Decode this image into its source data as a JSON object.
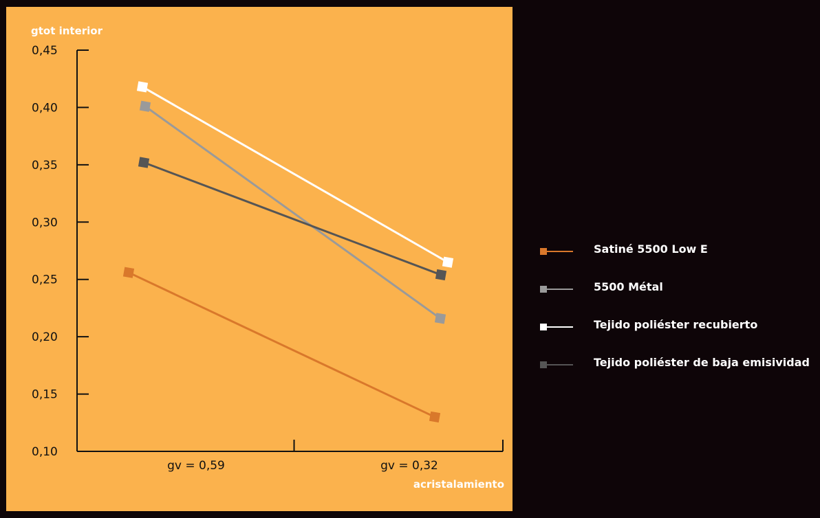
{
  "chart_data": {
    "type": "line",
    "ylabel": "gtot interior",
    "xlabel": "acristalamiento",
    "categories": [
      "gv = 0,59",
      "gv = 0,32"
    ],
    "ylim": [
      0.1,
      0.45
    ],
    "yticks": [
      "0,10",
      "0,15",
      "0,20",
      "0,25",
      "0,30",
      "0,35",
      "0,40",
      "0,45"
    ],
    "yticks_values": [
      0.1,
      0.15,
      0.2,
      0.25,
      0.3,
      0.35,
      0.4,
      0.45
    ],
    "grid": false,
    "legend_position": "right",
    "series": [
      {
        "name": "Satiné 5500 Low E",
        "color": "#d9782b",
        "x": [
          0.59,
          0.32
        ],
        "values": [
          0.256,
          0.13
        ]
      },
      {
        "name": "5500 Métal",
        "color": "#9a9a9a",
        "x": [
          0.59,
          0.32
        ],
        "values": [
          0.401,
          0.216
        ]
      },
      {
        "name": "Tejido poliéster recubierto",
        "color": "#ffffff",
        "x": [
          0.59,
          0.32
        ],
        "values": [
          0.418,
          0.265
        ]
      },
      {
        "name": "Tejido poliéster de baja emisividad",
        "color": "#555555",
        "x": [
          0.59,
          0.32
        ],
        "values": [
          0.352,
          0.254
        ]
      }
    ]
  }
}
